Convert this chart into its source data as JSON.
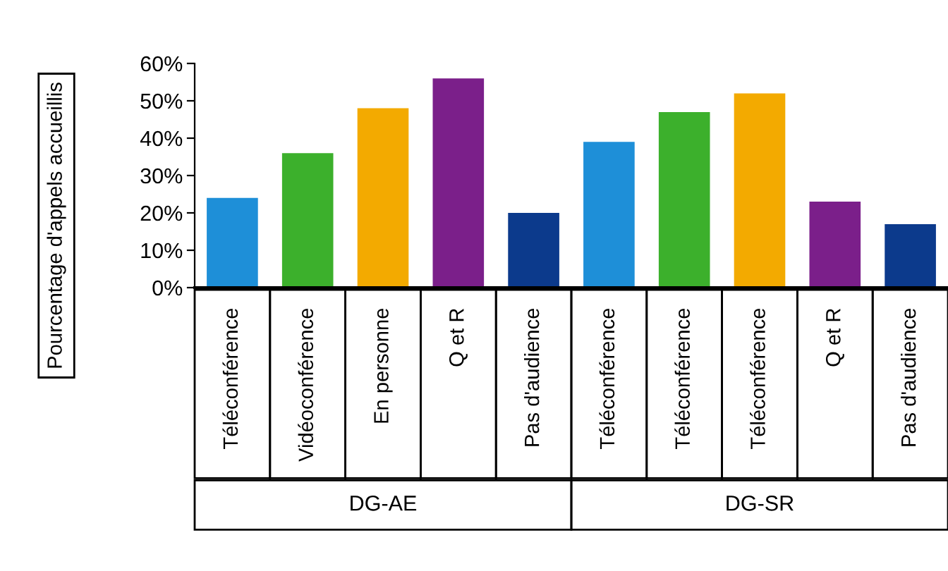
{
  "chart_data": {
    "type": "bar",
    "ylabel": "Pourcentage d'appels accueillis",
    "categories": [
      "Téléconférence",
      "Vidéoconférence",
      "En personne",
      "Q et R",
      "Pas d'audience",
      "Téléconférence",
      "Téléconférence",
      "Téléconférence",
      "Q et R",
      "Pas d'audience"
    ],
    "values": [
      24,
      36,
      48,
      56,
      20,
      39,
      47,
      52,
      23,
      17
    ],
    "colors": [
      "#1e8fd8",
      "#3cb02c",
      "#f3aa00",
      "#7b1f8a",
      "#0c3a8c",
      "#1e8fd8",
      "#3cb02c",
      "#f3aa00",
      "#7b1f8a",
      "#0c3a8c"
    ],
    "ylim": [
      0,
      60
    ],
    "yticks": [
      {
        "value": 0,
        "label": "0%"
      },
      {
        "value": 10,
        "label": "10%"
      },
      {
        "value": 20,
        "label": "20%"
      },
      {
        "value": 30,
        "label": "30%"
      },
      {
        "value": 40,
        "label": "40%"
      },
      {
        "value": 50,
        "label": "50%"
      },
      {
        "value": 60,
        "label": "60%"
      }
    ],
    "annotations": [
      "DG-AE",
      "DG-SR"
    ],
    "grid": false,
    "legend": false
  }
}
